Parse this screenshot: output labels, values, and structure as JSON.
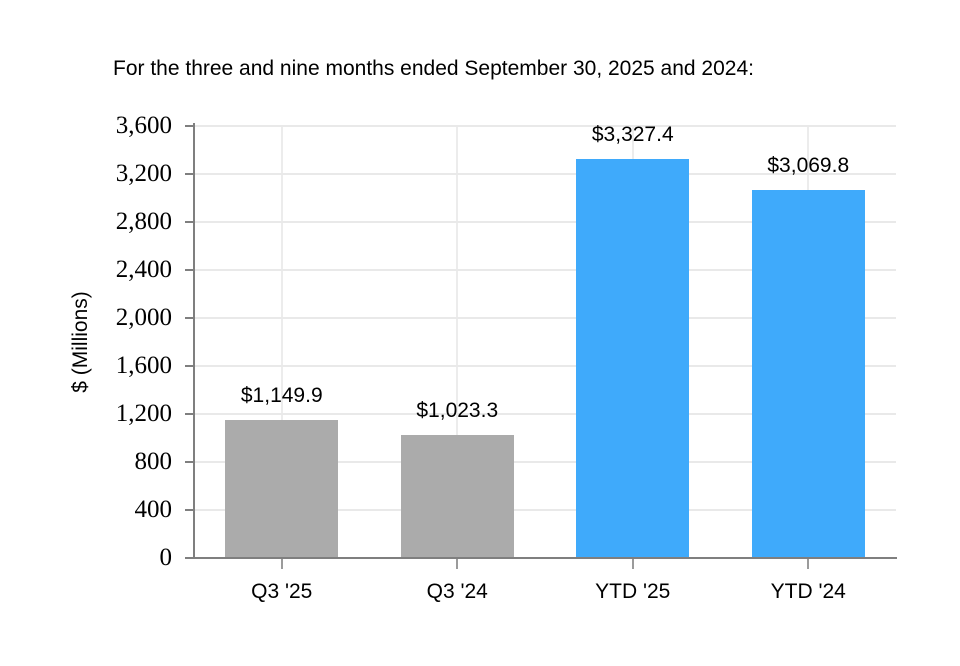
{
  "page": {
    "background_color": "#FFFFFF"
  },
  "chart_data": {
    "type": "bar",
    "title": "For the three and nine months ended September 30, 2025 and 2024:",
    "xlabel": "",
    "ylabel": "$ (Millions)",
    "categories": [
      "Q3 '25",
      "Q3 '24",
      "YTD '25",
      "YTD '24"
    ],
    "values": [
      1149.9,
      1023.3,
      3327.4,
      3069.8
    ],
    "data_labels": [
      "$1,149.9",
      "$1,023.3",
      "$3,327.4",
      "$3,069.8"
    ],
    "bar_colors": [
      "#ABABAB",
      "#ABABAB",
      "#3FAAFB",
      "#3FAAFB"
    ],
    "ylim": [
      0,
      3600
    ],
    "ytick_interval": 400,
    "ytick_labels": [
      "0",
      "400",
      "800",
      "1,200",
      "1,600",
      "2,000",
      "2,400",
      "2,800",
      "3,200",
      "3,600"
    ],
    "grid": {
      "horizontal": true,
      "vertical_at_category_centers": true
    },
    "legend": "none",
    "colors": {
      "axis_line": "#7F7F7F",
      "horizontal_gridline": "#E9E9E9",
      "vertical_gridline": "#ECECEC",
      "y_tick_mark": "#7F7F7F",
      "x_tick_mark": "#9B9B9B",
      "text": "#000000",
      "quarter_bar": "#ABABAB",
      "ytd_bar": "#3FAAFB"
    }
  }
}
